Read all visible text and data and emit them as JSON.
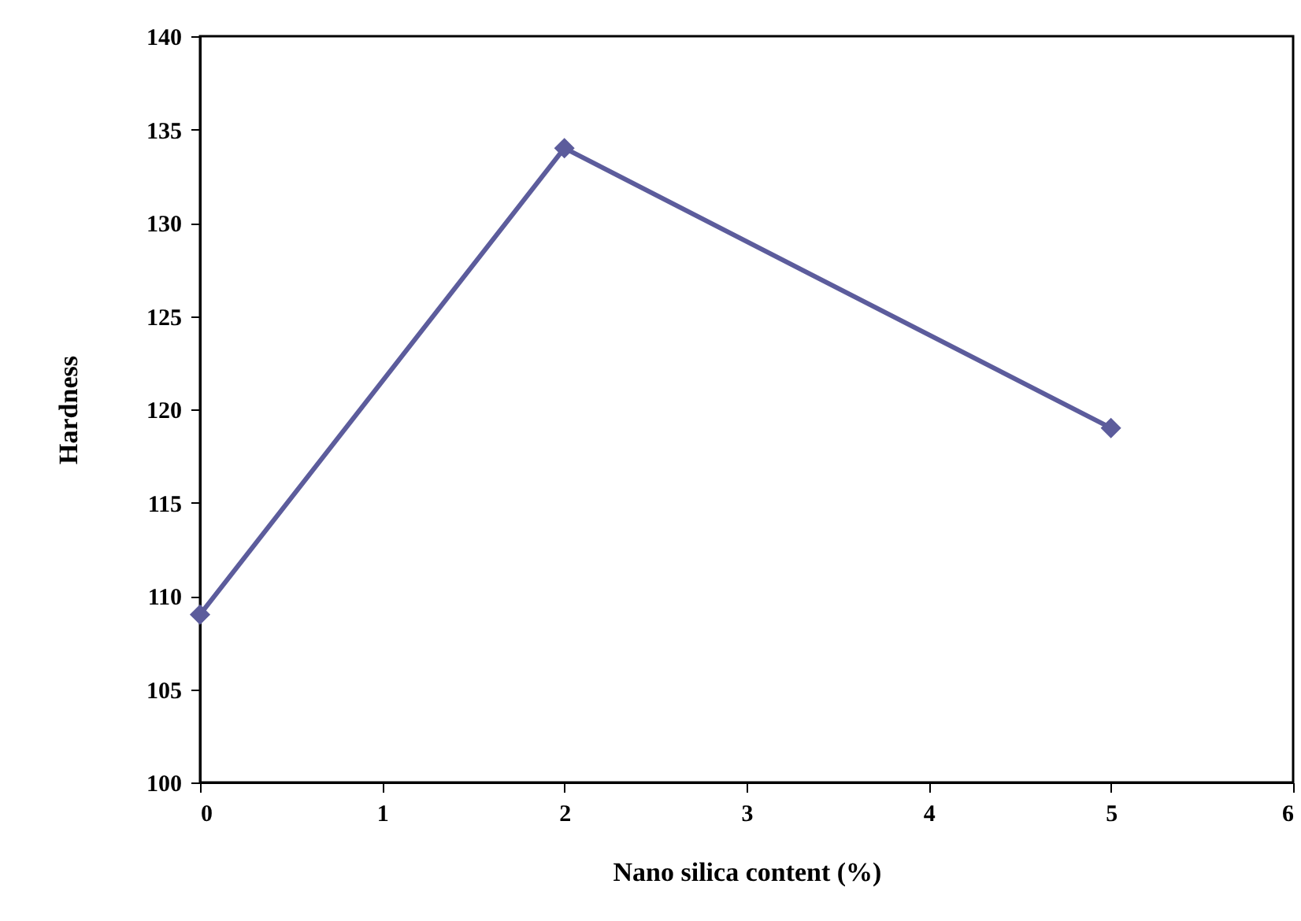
{
  "chart_data": {
    "type": "line",
    "xlabel": "Nano silica content (%)",
    "ylabel": "Hardness",
    "x": [
      0,
      2,
      5
    ],
    "series": [
      {
        "color": "#5c5c9c",
        "values": [
          109,
          134,
          119
        ]
      }
    ],
    "xlim": [
      0,
      6
    ],
    "xticks": [
      0,
      1,
      2,
      3,
      4,
      5,
      6
    ],
    "ylim": [
      100,
      140
    ],
    "yticks": [
      100,
      105,
      110,
      115,
      120,
      125,
      130,
      135,
      140
    ],
    "marker": "diamond",
    "line_style": "solid",
    "grid": false
  }
}
